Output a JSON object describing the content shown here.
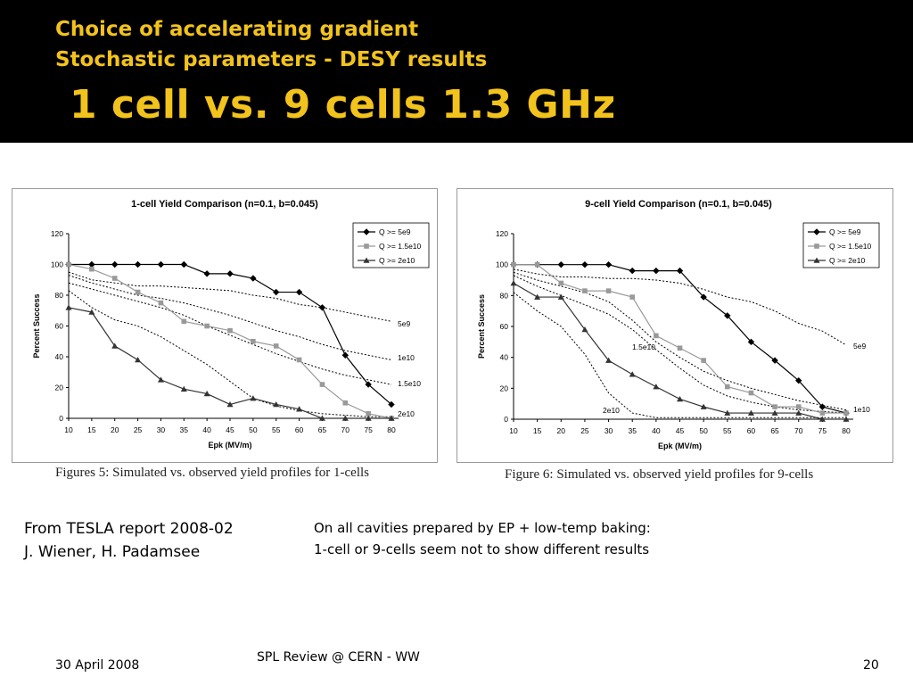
{
  "slide": {
    "title_line1": "Choice of accelerating gradient",
    "title_line2": "Stochastic parameters - DESY results",
    "title_main": "1 cell vs. 9 cells 1.3 GHz",
    "source_line1": "From TESLA report 2008-02",
    "source_line2": "J. Wiener, H. Padamsee",
    "note_line1": "On all cavities prepared by EP + low-temp baking:",
    "note_line2": "1-cell or 9-cells seem not to show different results",
    "caption1": "Figures 5: Simulated vs. observed yield profiles for 1-cells",
    "caption2": "Figure 6: Simulated vs. observed yield profiles for 9-cells",
    "footer_date": "30 April 2008",
    "footer_center": "SPL Review  @ CERN - WW",
    "footer_page": "20"
  },
  "colors": {
    "title": "#f2c31c",
    "series_5e9": "#000000",
    "series_1_5e10": "#999999",
    "series_2e10": "#333333"
  },
  "chart_data": [
    {
      "type": "line",
      "title": "1-cell Yield Comparison (n=0.1, b=0.045)",
      "xlabel": "Epk (MV/m)",
      "ylabel": "Percent Success",
      "x": [
        10,
        15,
        20,
        25,
        30,
        35,
        40,
        45,
        50,
        55,
        60,
        65,
        70,
        75,
        80
      ],
      "xlim": [
        10,
        80
      ],
      "ylim": [
        0,
        120
      ],
      "yticks": [
        0,
        20,
        40,
        60,
        80,
        100,
        120
      ],
      "grid": false,
      "legend": "top-right",
      "series": [
        {
          "name": "Q >= 5e9",
          "marker": "diamond",
          "values": [
            100,
            100,
            100,
            100,
            100,
            100,
            94,
            94,
            91,
            82,
            82,
            72,
            41,
            22,
            9
          ]
        },
        {
          "name": "Q >= 1.5e10",
          "marker": "square",
          "values": [
            100,
            97,
            91,
            82,
            75,
            63,
            60,
            57,
            50,
            47,
            38,
            22,
            10,
            3,
            0
          ]
        },
        {
          "name": "Q >= 2e10",
          "marker": "triangle",
          "values": [
            72,
            69,
            47,
            38,
            25,
            19,
            16,
            9,
            13,
            9,
            6,
            0,
            0,
            0,
            0
          ]
        }
      ],
      "simulated_curves": [
        {
          "label": "5e9",
          "values": [
            95,
            90,
            88,
            86,
            86,
            85,
            84,
            83,
            80,
            78,
            74,
            72,
            69,
            66,
            63
          ]
        },
        {
          "label": "1e10",
          "values": [
            93,
            88,
            84,
            80,
            78,
            75,
            71,
            67,
            62,
            57,
            53,
            48,
            44,
            41,
            38
          ]
        },
        {
          "label": "1.5e10",
          "values": [
            88,
            84,
            80,
            76,
            72,
            67,
            60,
            54,
            48,
            42,
            37,
            32,
            28,
            25,
            22
          ]
        },
        {
          "label": "2e10",
          "values": [
            83,
            72,
            64,
            60,
            53,
            44,
            35,
            24,
            13,
            8,
            5,
            3,
            2,
            1,
            1
          ]
        }
      ]
    },
    {
      "type": "line",
      "title": "9-cell Yield Comparison (n=0.1, b=0.045)",
      "xlabel": "Epk (MV/m)",
      "ylabel": "Percent Success",
      "x": [
        10,
        15,
        20,
        25,
        30,
        35,
        40,
        45,
        50,
        55,
        60,
        65,
        70,
        75,
        80
      ],
      "xlim": [
        10,
        80
      ],
      "ylim": [
        0,
        120
      ],
      "yticks": [
        0,
        20,
        40,
        60,
        80,
        100,
        120
      ],
      "grid": false,
      "legend": "top-right",
      "series": [
        {
          "name": "Q >= 5e9",
          "marker": "diamond",
          "values": [
            100,
            100,
            100,
            100,
            100,
            96,
            96,
            96,
            79,
            67,
            50,
            38,
            25,
            8,
            4
          ]
        },
        {
          "name": "Q >= 1.5e10",
          "marker": "square",
          "values": [
            100,
            100,
            88,
            83,
            83,
            79,
            54,
            46,
            38,
            21,
            17,
            8,
            8,
            4,
            4
          ]
        },
        {
          "name": "Q >= 2e10",
          "marker": "triangle",
          "values": [
            88,
            79,
            79,
            58,
            38,
            29,
            21,
            13,
            8,
            4,
            4,
            4,
            4,
            0,
            0
          ]
        }
      ],
      "simulated_curves": [
        {
          "label": "5e9",
          "values": [
            97,
            94,
            92,
            92,
            91,
            91,
            90,
            88,
            84,
            79,
            76,
            70,
            62,
            57,
            48
          ]
        },
        {
          "label": "1.5e10",
          "values": [
            95,
            90,
            86,
            82,
            76,
            64,
            50,
            40,
            31,
            25,
            20,
            16,
            12,
            9,
            6
          ]
        },
        {
          "label": "",
          "values": [
            93,
            86,
            80,
            74,
            68,
            58,
            45,
            33,
            22,
            15,
            11,
            8,
            6,
            5,
            4
          ]
        },
        {
          "label": "2e10",
          "values": [
            82,
            70,
            60,
            42,
            17,
            4,
            1,
            1,
            1,
            1,
            1,
            1,
            1,
            1,
            1
          ]
        }
      ],
      "curve_labels": [
        "5e9",
        "1.5e10",
        "2e10",
        "1e10"
      ]
    }
  ]
}
